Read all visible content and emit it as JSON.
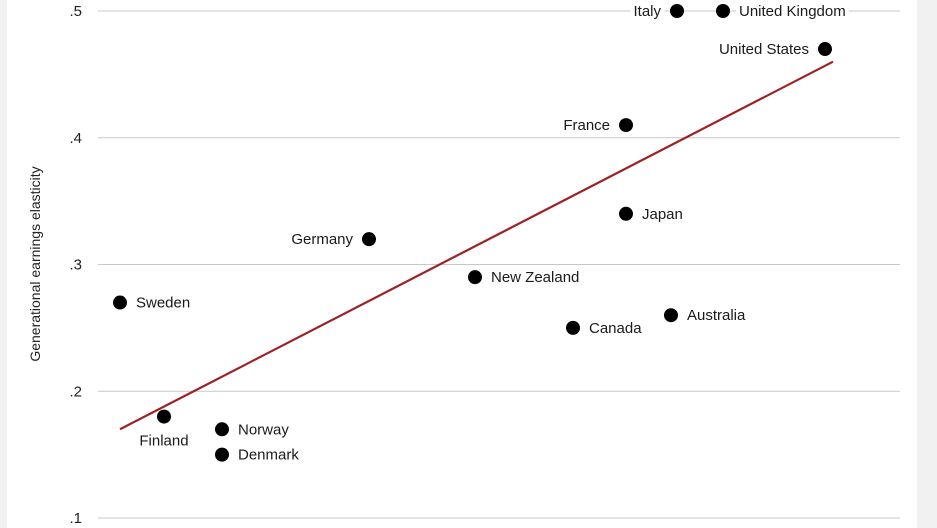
{
  "chart_data": {
    "type": "scatter",
    "title": "",
    "xlabel": "",
    "ylabel": "Generational earnings elasticity",
    "ylim": [
      0.1,
      0.5
    ],
    "y_ticks": [
      {
        "value": 0.5,
        "label": ".5"
      },
      {
        "value": 0.4,
        "label": ".4"
      },
      {
        "value": 0.3,
        "label": ".3"
      },
      {
        "value": 0.2,
        "label": ".2"
      },
      {
        "value": 0.1,
        "label": ".1"
      }
    ],
    "grid": true,
    "colors": {
      "point": "#000000",
      "trend": "#9b2325",
      "grid": "#c8c8c8"
    },
    "points": [
      {
        "label": "Italy",
        "y": 0.5,
        "label_side": "left"
      },
      {
        "label": "United Kingdom",
        "y": 0.5,
        "label_side": "right"
      },
      {
        "label": "United States",
        "y": 0.47,
        "label_side": "left"
      },
      {
        "label": "France",
        "y": 0.41,
        "label_side": "left"
      },
      {
        "label": "Japan",
        "y": 0.34,
        "label_side": "right"
      },
      {
        "label": "Germany",
        "y": 0.32,
        "label_side": "left"
      },
      {
        "label": "New Zealand",
        "y": 0.29,
        "label_side": "right"
      },
      {
        "label": "Sweden",
        "y": 0.27,
        "label_side": "right"
      },
      {
        "label": "Australia",
        "y": 0.26,
        "label_side": "right"
      },
      {
        "label": "Canada",
        "y": 0.25,
        "label_side": "right"
      },
      {
        "label": "Finland",
        "y": 0.18,
        "label_side": "below"
      },
      {
        "label": "Norway",
        "y": 0.17,
        "label_side": "right"
      },
      {
        "label": "Denmark",
        "y": 0.15,
        "label_side": "right"
      }
    ],
    "trend_line": {
      "y_start": 0.17,
      "y_end": 0.46
    }
  }
}
